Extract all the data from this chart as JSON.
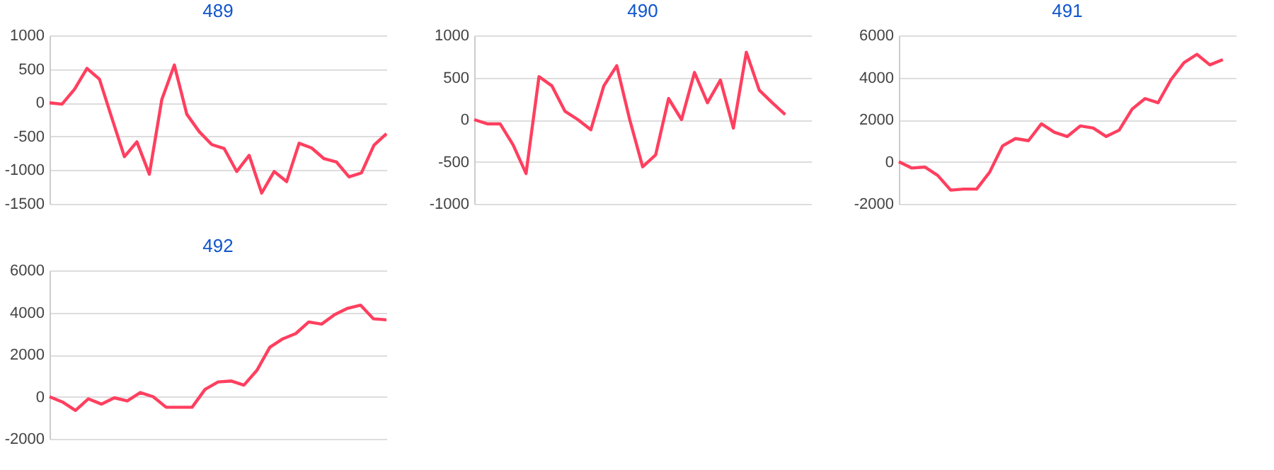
{
  "chart_data": [
    {
      "type": "line",
      "title": "489",
      "categories": [
        null,
        null,
        null,
        null,
        null,
        null,
        null,
        null,
        null,
        null,
        null,
        null,
        null,
        null,
        null,
        null,
        null,
        null,
        null,
        null,
        null,
        null,
        null,
        null,
        null,
        null,
        null,
        null
      ],
      "values": [
        0,
        -20,
        200,
        510,
        350,
        -230,
        -800,
        -580,
        -1060,
        50,
        560,
        -170,
        -430,
        -620,
        -680,
        -1020,
        -780,
        -1340,
        -1020,
        -1170,
        -600,
        -670,
        -830,
        -880,
        -1100,
        -1040,
        -630,
        -460
      ],
      "color": "#ff3f5f",
      "ylim": [
        -1500,
        1000
      ],
      "yticks": [
        -1500,
        -1000,
        -500,
        0,
        500,
        1000
      ],
      "grid": "y",
      "tick_labels": "y"
    },
    {
      "type": "line",
      "title": "490",
      "categories": [
        null,
        null,
        null,
        null,
        null,
        null,
        null,
        null,
        null,
        null,
        null,
        null,
        null,
        null,
        null,
        null,
        null,
        null,
        null,
        null,
        null,
        null,
        null,
        null,
        null,
        null,
        null
      ],
      "values": [
        0,
        -50,
        -50,
        -300,
        -640,
        510,
        400,
        100,
        0,
        -120,
        400,
        640,
        0,
        -560,
        -420,
        250,
        0,
        560,
        200,
        470,
        -100,
        800,
        350,
        200,
        60,
        null,
        null
      ],
      "color": "#ff3f5f",
      "ylim": [
        -1000,
        1000
      ],
      "yticks": [
        -1000,
        -500,
        0,
        500,
        1000
      ],
      "grid": "y",
      "tick_labels": "y"
    },
    {
      "type": "line",
      "title": "491",
      "categories": [
        null,
        null,
        null,
        null,
        null,
        null,
        null,
        null,
        null,
        null,
        null,
        null,
        null,
        null,
        null,
        null,
        null,
        null,
        null,
        null,
        null,
        null,
        null,
        null,
        null,
        null,
        null
      ],
      "values": [
        0,
        -300,
        -250,
        -650,
        -1350,
        -1300,
        -1300,
        -500,
        750,
        1100,
        1000,
        1800,
        1400,
        1200,
        1700,
        1600,
        1200,
        1500,
        2500,
        3000,
        2800,
        3900,
        4700,
        5100,
        4600,
        4850,
        null
      ],
      "color": "#ff3f5f",
      "ylim": [
        -2000,
        6000
      ],
      "yticks": [
        -2000,
        0,
        2000,
        4000,
        6000
      ],
      "grid": "y",
      "tick_labels": "y"
    },
    {
      "type": "line",
      "title": "492",
      "categories": [
        null,
        null,
        null,
        null,
        null,
        null,
        null,
        null,
        null,
        null,
        null,
        null,
        null,
        null,
        null,
        null,
        null,
        null,
        null,
        null,
        null,
        null,
        null,
        null,
        null,
        null,
        null
      ],
      "values": [
        0,
        -250,
        -650,
        -100,
        -350,
        -50,
        -200,
        200,
        0,
        -500,
        -500,
        -500,
        350,
        700,
        750,
        550,
        1250,
        2350,
        2750,
        3000,
        3550,
        3450,
        3900,
        4200,
        4350,
        3700,
        3650
      ],
      "color": "#ff3f5f",
      "ylim": [
        -2000,
        6000
      ],
      "yticks": [
        -2000,
        0,
        2000,
        4000,
        6000
      ],
      "grid": "y",
      "tick_labels": "y"
    }
  ]
}
